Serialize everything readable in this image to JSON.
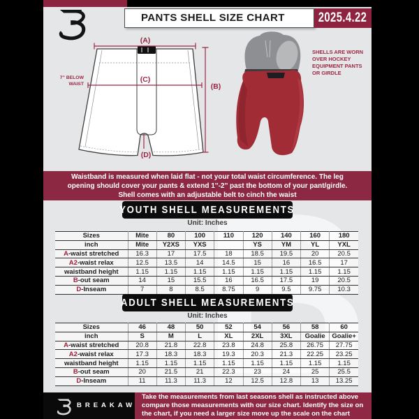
{
  "header": {
    "title": "PANTS SHELL SIZE CHART",
    "date": "2025.4.22"
  },
  "diagram": {
    "label_a": "(A)",
    "label_b": "(B)",
    "label_c": "(C)",
    "label_d": "(D)",
    "below_waist_note": "7'' BELOW WAIST",
    "photo_note": "SHELLS ARE WORN OVER HOCKEY EQUIPMENT PANTS OR GIRDLE"
  },
  "notice": "Waistband is measured when laid flat - not your total waist circumference. The leg opening should cover your pants & extend 1''-2'' past the bottom of your pant/girdle. Shell comes with an adjustable belt to cinch the waist",
  "youth": {
    "heading": "YOUTH SHELL MEASUREMENTS",
    "unit_label": "Unit: Inches",
    "rows": [
      {
        "prefix": "",
        "label": "Sizes",
        "header": true,
        "values": [
          "Mite",
          "80",
          "100",
          "110",
          "120",
          "140",
          "160",
          "180"
        ]
      },
      {
        "prefix": "",
        "label": "inch",
        "header": true,
        "values": [
          "Mite",
          "Y2XS",
          "YXS",
          "",
          "YS",
          "YM",
          "YL",
          "YXL"
        ]
      },
      {
        "prefix": "A",
        "label": "-waist stretched",
        "header": false,
        "values": [
          "16.3",
          "17",
          "17.5",
          "18",
          "18.5",
          "19.5",
          "20",
          "20.5"
        ]
      },
      {
        "prefix": "A2",
        "label": "-waist relax",
        "header": false,
        "values": [
          "12.5",
          "13.5",
          "14",
          "14.5",
          "15",
          "16",
          "16.5",
          "17"
        ]
      },
      {
        "prefix": "",
        "label": "waistband height",
        "header": false,
        "values": [
          "1.15",
          "1.15",
          "1.15",
          "1.15",
          "1.15",
          "1.15",
          "1.15",
          "1.15"
        ]
      },
      {
        "prefix": "B",
        "label": "-out seam",
        "header": false,
        "values": [
          "14",
          "15",
          "15.5",
          "16",
          "16.5",
          "17.5",
          "19",
          "20.5"
        ]
      },
      {
        "prefix": "D",
        "label": "-Inseam",
        "header": false,
        "values": [
          "7",
          "8",
          "8.5",
          "8.75",
          "9",
          "9.5",
          "9.75",
          "10.3"
        ]
      }
    ]
  },
  "adult": {
    "heading": "ADULT SHELL MEASUREMENTS",
    "unit_label": "Unit: Inches",
    "rows": [
      {
        "prefix": "",
        "label": "Sizes",
        "header": true,
        "values": [
          "46",
          "48",
          "50",
          "52",
          "54",
          "56",
          "58",
          "60"
        ]
      },
      {
        "prefix": "",
        "label": "inch",
        "header": true,
        "values": [
          "S",
          "M",
          "L",
          "XL",
          "2XL",
          "3XL",
          "Goalie",
          "Goalie+"
        ]
      },
      {
        "prefix": "A",
        "label": "-waist stretched",
        "header": false,
        "values": [
          "20.8",
          "21.8",
          "22.8",
          "23.8",
          "24.8",
          "25.8",
          "26.75",
          "27.75"
        ]
      },
      {
        "prefix": "A2",
        "label": "-waist relax",
        "header": false,
        "values": [
          "17.3",
          "18.3",
          "18.3",
          "19.3",
          "20.3",
          "21.3",
          "22.25",
          "23.25"
        ]
      },
      {
        "prefix": "",
        "label": "waistband height",
        "header": false,
        "values": [
          "1.15",
          "1.15",
          "1.15",
          "1.15",
          "1.15",
          "1.15",
          "1.15",
          "1.15"
        ]
      },
      {
        "prefix": "B",
        "label": "-out seam",
        "header": false,
        "values": [
          "20",
          "21.5",
          "21",
          "22.3",
          "23",
          "24",
          "25",
          "25.5"
        ]
      },
      {
        "prefix": "D",
        "label": "-Inseam",
        "header": false,
        "values": [
          "11",
          "11.3",
          "11.3",
          "12",
          "12.5",
          "12.8",
          "13",
          "13.25"
        ]
      }
    ]
  },
  "footer": {
    "brand": "BREAKAWAY",
    "note": "Take the measurements from last seasons shell as instructed above compare those measurements  with our size chart. Identify the size on the chart, if you need a larger size move up the scale on the chart"
  },
  "watermark_letter": "B",
  "colors": {
    "maroon": "#8d2843",
    "accent_red": "#9c2742",
    "black": "#0c0c0c",
    "bg_gray": "#e5e6e8"
  }
}
